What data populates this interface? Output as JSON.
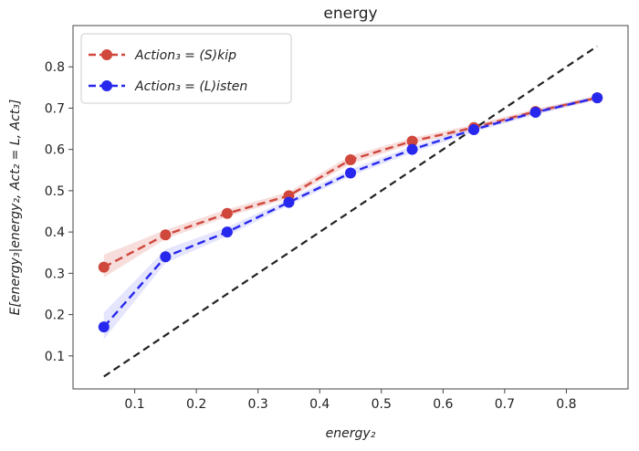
{
  "chart_data": {
    "type": "line",
    "title": "energy",
    "xlabel": "energy₂",
    "ylabel": "Ε[energy₃|energy₂, Act₂ = L, Act₃]",
    "xlim": [
      0.0,
      0.9
    ],
    "ylim": [
      0.02,
      0.9
    ],
    "xticks": [
      0.1,
      0.2,
      0.3,
      0.4,
      0.5,
      0.6,
      0.7,
      0.8
    ],
    "yticks": [
      0.1,
      0.2,
      0.3,
      0.4,
      0.5,
      0.6,
      0.7,
      0.8
    ],
    "xtick_labels": [
      "0.1",
      "0.2",
      "0.3",
      "0.4",
      "0.5",
      "0.6",
      "0.7",
      "0.8"
    ],
    "ytick_labels": [
      "0.1",
      "0.2",
      "0.3",
      "0.4",
      "0.5",
      "0.6",
      "0.7",
      "0.8"
    ],
    "grid": false,
    "legend_position": "top-left",
    "x": [
      0.05,
      0.15,
      0.25,
      0.35,
      0.45,
      0.55,
      0.65,
      0.75,
      0.85
    ],
    "series": [
      {
        "name": "Action₃ = (S)kip",
        "color": "#d0473c",
        "band_color": "#d0473c",
        "values": [
          0.315,
          0.393,
          0.445,
          0.488,
          0.575,
          0.62,
          0.653,
          0.692,
          0.725
        ],
        "lower": [
          0.29,
          0.383,
          0.437,
          0.481,
          0.565,
          0.613,
          0.647,
          0.686,
          0.72
        ],
        "upper": [
          0.345,
          0.405,
          0.455,
          0.497,
          0.585,
          0.628,
          0.66,
          0.698,
          0.73
        ]
      },
      {
        "name": "Action₃ = (L)isten",
        "color": "#2727ee",
        "band_color": "#6f6ff5",
        "values": [
          0.17,
          0.34,
          0.4,
          0.472,
          0.543,
          0.6,
          0.648,
          0.69,
          0.725
        ],
        "lower": [
          0.14,
          0.325,
          0.39,
          0.465,
          0.535,
          0.592,
          0.642,
          0.684,
          0.72
        ],
        "upper": [
          0.205,
          0.358,
          0.412,
          0.48,
          0.552,
          0.608,
          0.654,
          0.696,
          0.73
        ]
      }
    ],
    "reference_line": {
      "style": "dashed",
      "color": "#222222",
      "x": [
        0.05,
        0.85
      ],
      "y": [
        0.05,
        0.85
      ]
    }
  }
}
